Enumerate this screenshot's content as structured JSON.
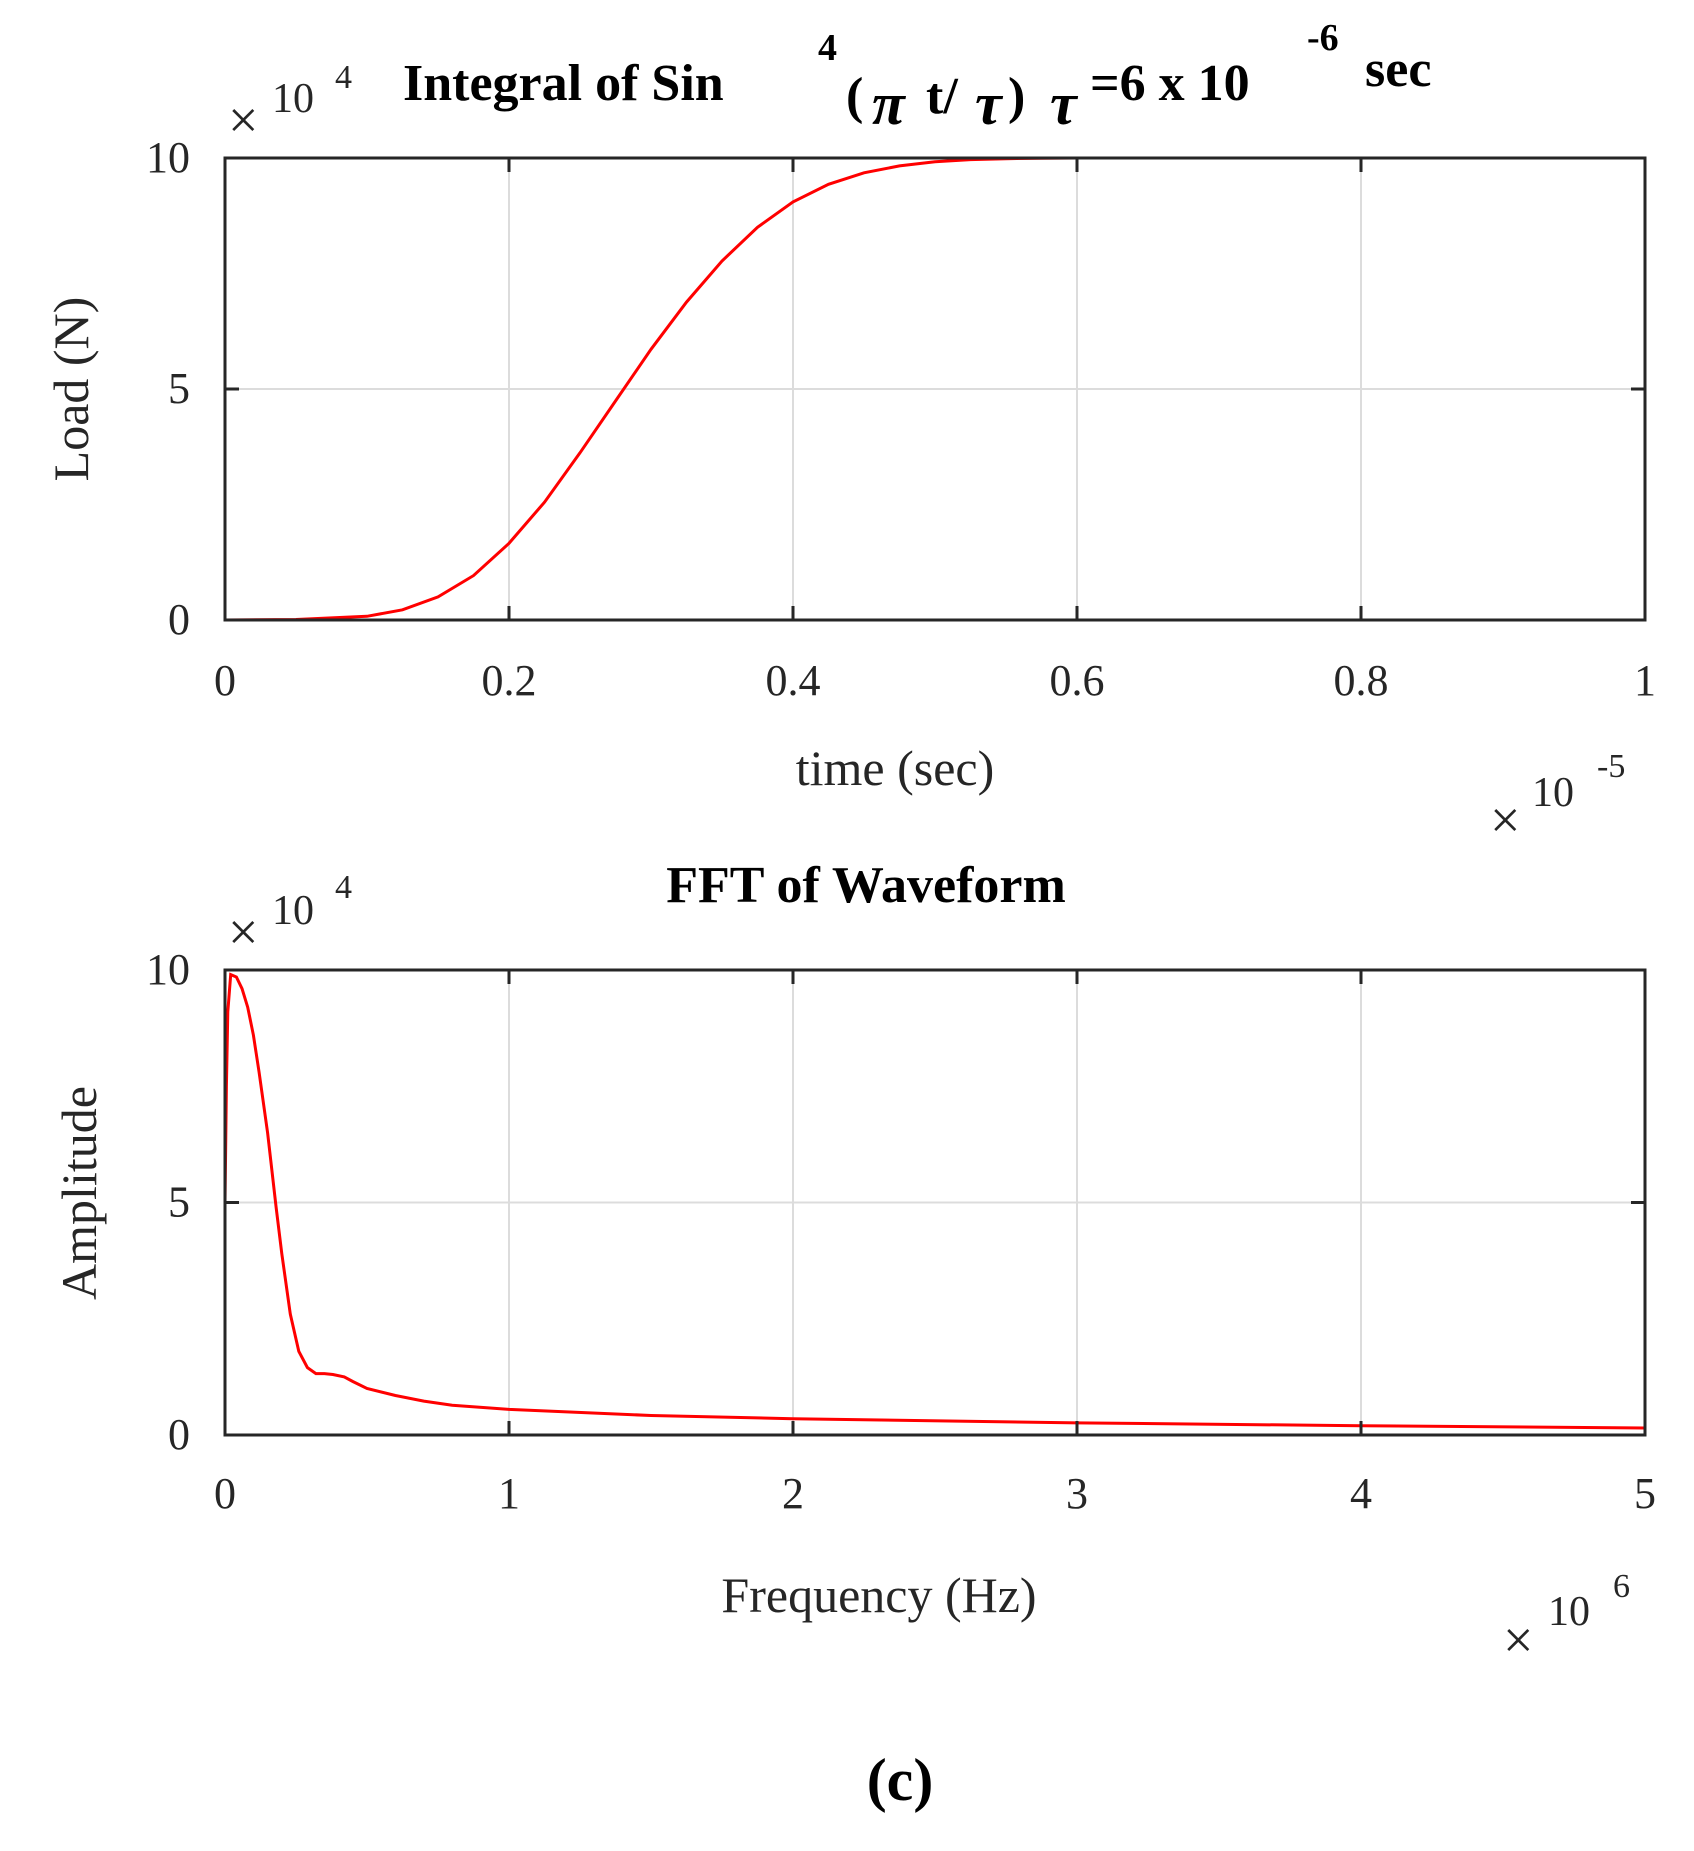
{
  "chart_data": [
    {
      "type": "line",
      "id": "load",
      "title_parts": [
        "Integral of Sin",
        "4",
        "(",
        "π",
        "t/",
        "τ",
        ")",
        "τ",
        "=6 x 10",
        "-6",
        "sec"
      ],
      "xlabel": "time (sec)",
      "ylabel": "Load (N)",
      "xlim": [
        0,
        1
      ],
      "ylim": [
        0,
        10
      ],
      "xticks": [
        0,
        0.2,
        0.4,
        0.6,
        0.8,
        1
      ],
      "xtick_labels": [
        "0",
        "0.2",
        "0.4",
        "0.6",
        "0.8",
        "1"
      ],
      "yticks": [
        0,
        5,
        10
      ],
      "ytick_labels": [
        "0",
        "5",
        "10"
      ],
      "x_exponent": {
        "base": "10",
        "power": "-5"
      },
      "y_exponent": {
        "base": "10",
        "power": "4"
      },
      "grid": true,
      "line_color": "#ff0000",
      "series": [
        {
          "name": "Load",
          "x": [
            0,
            0.05,
            0.1,
            0.125,
            0.15,
            0.175,
            0.2,
            0.225,
            0.25,
            0.275,
            0.3,
            0.325,
            0.35,
            0.375,
            0.4,
            0.425,
            0.45,
            0.475,
            0.5,
            0.525,
            0.55,
            0.575,
            0.6,
            0.7,
            0.8,
            0.9,
            1.0
          ],
          "y": [
            0,
            0.01,
            0.08,
            0.22,
            0.5,
            0.96,
            1.66,
            2.55,
            3.62,
            4.74,
            5.86,
            6.88,
            7.77,
            8.5,
            9.05,
            9.43,
            9.68,
            9.83,
            9.92,
            9.965,
            9.985,
            9.995,
            10,
            10,
            10,
            10,
            10
          ]
        }
      ]
    },
    {
      "type": "line",
      "id": "fft",
      "title": "FFT of Waveform",
      "xlabel": "Frequency (Hz)",
      "ylabel": "Amplitude",
      "xlim": [
        0,
        5
      ],
      "ylim": [
        0,
        10
      ],
      "xticks": [
        0,
        1,
        2,
        3,
        4,
        5
      ],
      "xtick_labels": [
        "0",
        "1",
        "2",
        "3",
        "4",
        "5"
      ],
      "yticks": [
        0,
        5,
        10
      ],
      "ytick_labels": [
        "0",
        "5",
        "10"
      ],
      "x_exponent": {
        "base": "10",
        "power": "6"
      },
      "y_exponent": {
        "base": "10",
        "power": "4"
      },
      "grid": true,
      "line_color": "#ff0000",
      "series": [
        {
          "name": "Amplitude",
          "x": [
            0,
            0.005,
            0.01,
            0.02,
            0.04,
            0.06,
            0.08,
            0.1,
            0.12,
            0.15,
            0.18,
            0.2,
            0.23,
            0.26,
            0.29,
            0.32,
            0.35,
            0.38,
            0.42,
            0.45,
            0.5,
            0.6,
            0.7,
            0.8,
            1.0,
            1.5,
            2.0,
            3.0,
            4.0,
            5.0
          ],
          "y": [
            5.0,
            7.5,
            9.1,
            9.9,
            9.85,
            9.6,
            9.2,
            8.6,
            7.8,
            6.5,
            4.9,
            3.9,
            2.6,
            1.8,
            1.45,
            1.32,
            1.32,
            1.3,
            1.25,
            1.15,
            1.0,
            0.85,
            0.73,
            0.64,
            0.55,
            0.42,
            0.35,
            0.26,
            0.2,
            0.15
          ]
        }
      ]
    }
  ],
  "caption": "(c)"
}
